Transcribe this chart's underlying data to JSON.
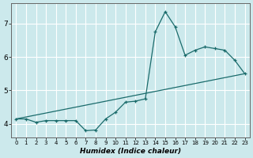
{
  "title": "",
  "xlabel": "Humidex (Indice chaleur)",
  "xlim": [
    -0.5,
    23.5
  ],
  "ylim": [
    3.6,
    7.6
  ],
  "yticks": [
    4,
    5,
    6,
    7
  ],
  "xticks": [
    0,
    1,
    2,
    3,
    4,
    5,
    6,
    7,
    8,
    9,
    10,
    11,
    12,
    13,
    14,
    15,
    16,
    17,
    18,
    19,
    20,
    21,
    22,
    23
  ],
  "bg_color": "#cce9ec",
  "line_color": "#1a6b6b",
  "grid_color": "#ffffff",
  "line1_x": [
    0,
    1,
    2,
    3,
    4,
    5,
    6,
    7,
    8,
    9,
    10,
    11,
    12,
    13,
    14,
    15,
    16,
    17,
    18,
    19,
    20,
    21,
    22,
    23
  ],
  "line1_y": [
    4.15,
    4.15,
    4.05,
    4.1,
    4.1,
    4.1,
    4.1,
    3.8,
    3.82,
    4.15,
    4.35,
    4.65,
    4.68,
    4.75,
    6.75,
    7.35,
    6.9,
    6.05,
    6.2,
    6.3,
    6.25,
    6.2,
    5.9,
    5.5
  ],
  "line2_x": [
    0,
    23
  ],
  "line2_y": [
    4.15,
    5.5
  ]
}
